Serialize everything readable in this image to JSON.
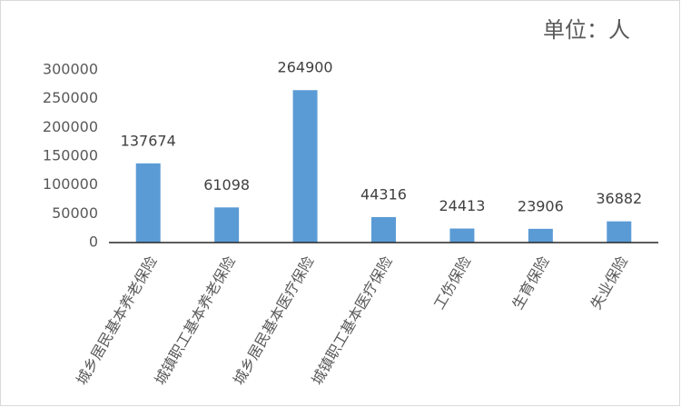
{
  "chart_data": {
    "type": "bar",
    "unit_label": "单位：人",
    "categories": [
      "城乡居民基本养老保险",
      "城镇职工基本养老保险",
      "城乡居民基本医疗保险",
      "城镇职工基本医疗保险",
      "工伤保险",
      "生育保险",
      "失业保险"
    ],
    "values": [
      137674,
      61098,
      264900,
      44316,
      24413,
      23906,
      36882
    ],
    "color": "#5b9bd5",
    "ylim": [
      0,
      300000
    ],
    "yticks": [
      0,
      50000,
      100000,
      150000,
      200000,
      250000,
      300000
    ],
    "grid": false
  }
}
